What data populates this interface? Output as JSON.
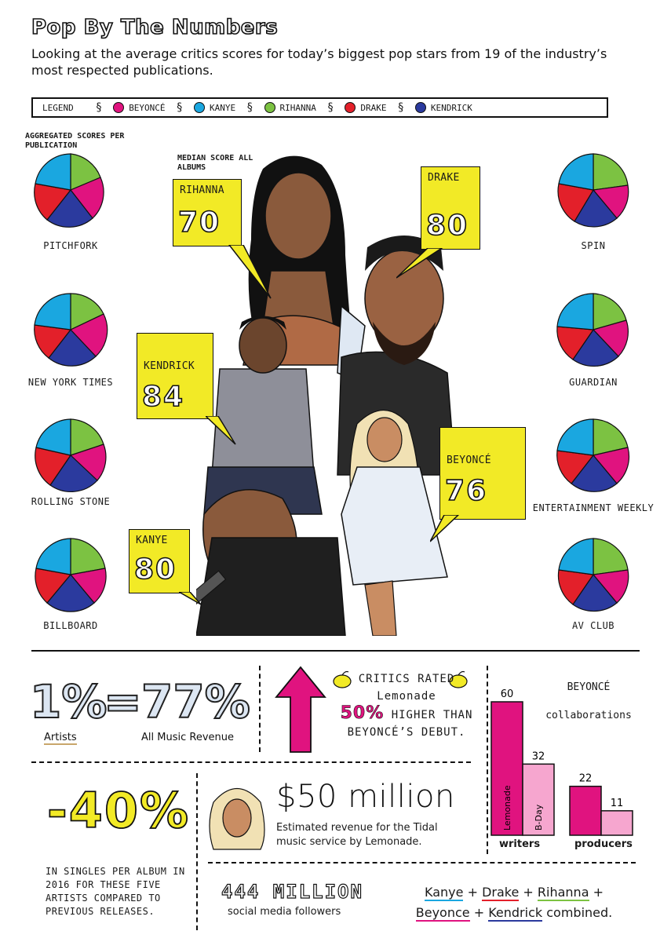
{
  "header": {
    "title": "Pop By The Numbers",
    "subtitle": "Looking at the average critics scores for today’s biggest pop stars from 19 of the industry’s most respected publications."
  },
  "legend": {
    "title": "LEGEND",
    "items": [
      {
        "label": "BEYONCÉ",
        "color": "#e0137f"
      },
      {
        "label": "KANYE",
        "color": "#1aa7e0"
      },
      {
        "label": "RIHANNA",
        "color": "#7cc242"
      },
      {
        "label": "DRAKE",
        "color": "#e3202a"
      },
      {
        "label": "KENDRICK",
        "color": "#2b3a9e"
      }
    ]
  },
  "labels": {
    "aggregated": "AGGREGATED SCORES PER PUBLICATION",
    "median": "MEDIAN SCORE ALL ALBUMS"
  },
  "publications": {
    "left": [
      "PITCHFORK",
      "NEW YORK TIMES",
      "ROLLING STONE",
      "BILLBOARD"
    ],
    "right": [
      "SPIN",
      "GUARDIAN",
      "ENTERTAINMENT WEEKLY",
      "AV CLUB"
    ]
  },
  "bubbles": [
    {
      "name": "RIHANNA",
      "score": "70"
    },
    {
      "name": "DRAKE",
      "score": "80"
    },
    {
      "name": "KENDRICK",
      "score": "84"
    },
    {
      "name": "BEYONCÉ",
      "score": "76"
    },
    {
      "name": "KANYE",
      "score": "80"
    }
  ],
  "stats": {
    "share_left": "1%",
    "equals": "=",
    "share_right": "77%",
    "share_left_label": "Artists",
    "share_right_label": "All Music Revenue",
    "critics_line1": "CRITICS RATED",
    "critics_line2": "Lemonade",
    "critics_pct": "50%",
    "critics_line3": "HIGHER THAN",
    "critics_line4": "BEYONCÉ’S DEBUT.",
    "decline": "-40%",
    "decline_desc": "IN SINGLES PER ALBUM IN 2016 FOR THESE FIVE ARTISTS COMPARED TO PREVIOUS RELEASES.",
    "revenue": "$50 million",
    "revenue_desc": "Estimated revenue for the Tidal music service by Lemonade.",
    "followers": "444 MILLION",
    "followers_desc": "social media followers",
    "combined": {
      "kanye": "Kanye",
      "drake": "Drake",
      "rihanna": "Rihanna",
      "beyonce": "Beyonce",
      "kendrick": "Kendrick",
      "plus": "+",
      "suffix": "combined."
    }
  },
  "collaborations": {
    "title_line1": "BEYONCÉ",
    "title_line2": "collaborations",
    "groups": [
      {
        "label": "writers",
        "bars": [
          {
            "name": "Lemonade",
            "value": 60
          },
          {
            "name": "B-Day",
            "value": 32
          }
        ]
      },
      {
        "label": "producers",
        "bars": [
          {
            "name": "",
            "value": 22
          },
          {
            "name": "",
            "value": 11
          }
        ]
      }
    ],
    "colors": {
      "primary": "#e0137f",
      "secondary": "#f6a6cf"
    }
  }
}
